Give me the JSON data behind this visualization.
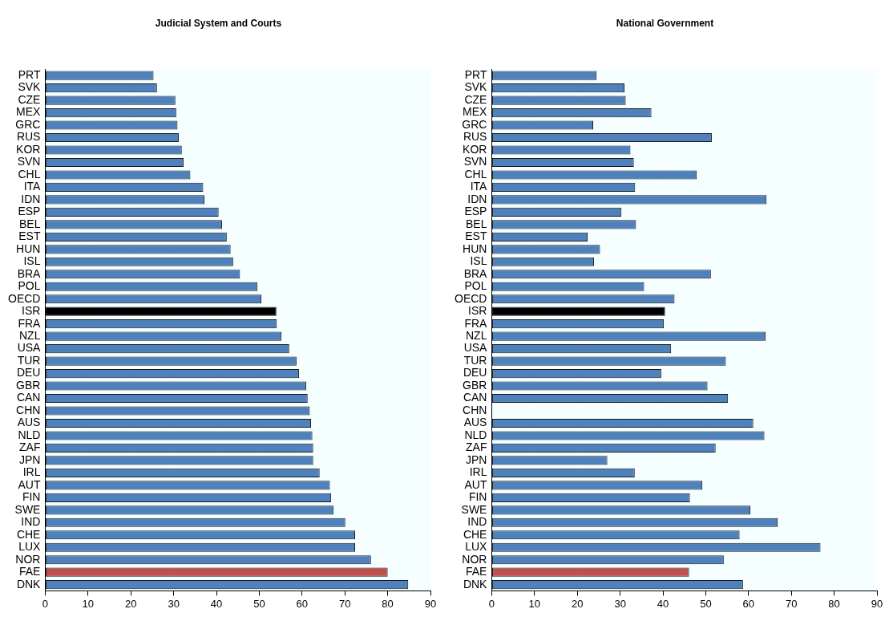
{
  "chart_data": [
    {
      "type": "bar",
      "orientation": "horizontal",
      "title": "Judicial System and Courts",
      "categories": [
        "PRT",
        "SVK",
        "CZE",
        "MEX",
        "GRC",
        "RUS",
        "KOR",
        "SVN",
        "CHL",
        "ITA",
        "IDN",
        "ESP",
        "BEL",
        "EST",
        "HUN",
        "ISL",
        "BRA",
        "POL",
        "OECD",
        "ISR",
        "FRA",
        "NZL",
        "USA",
        "TUR",
        "DEU",
        "GBR",
        "CAN",
        "CHN",
        "AUS",
        "NLD",
        "ZAF",
        "JPN",
        "IRL",
        "AUT",
        "FIN",
        "SWE",
        "IND",
        "CHE",
        "LUX",
        "NOR",
        "FAE",
        "DNK"
      ],
      "values": [
        25.3,
        26.1,
        30.4,
        30.6,
        30.9,
        31.2,
        31.9,
        32.3,
        33.9,
        36.9,
        37.2,
        40.5,
        41.3,
        42.4,
        43.3,
        43.9,
        45.5,
        49.6,
        50.5,
        54.0,
        54.1,
        55.2,
        57.0,
        58.7,
        59.3,
        61.0,
        61.3,
        61.8,
        62.1,
        62.4,
        62.6,
        62.6,
        64.1,
        66.5,
        66.8,
        67.4,
        70.1,
        72.4,
        72.4,
        76.1,
        80.0,
        84.8
      ],
      "colors": [
        "#4f81bd",
        "#4f81bd",
        "#4f81bd",
        "#4f81bd",
        "#4f81bd",
        "#4f81bd",
        "#4f81bd",
        "#4f81bd",
        "#4f81bd",
        "#4f81bd",
        "#4f81bd",
        "#4f81bd",
        "#4f81bd",
        "#4f81bd",
        "#4f81bd",
        "#4f81bd",
        "#4f81bd",
        "#4f81bd",
        "#4f81bd",
        "#000000",
        "#4f81bd",
        "#4f81bd",
        "#4f81bd",
        "#4f81bd",
        "#4f81bd",
        "#4f81bd",
        "#4f81bd",
        "#4f81bd",
        "#4f81bd",
        "#4f81bd",
        "#4f81bd",
        "#4f81bd",
        "#4f81bd",
        "#4f81bd",
        "#4f81bd",
        "#4f81bd",
        "#4f81bd",
        "#4f81bd",
        "#4f81bd",
        "#4f81bd",
        "#c0504d",
        "#4f81bd"
      ],
      "xlim": [
        0,
        90
      ],
      "xticks": [
        0,
        10,
        20,
        30,
        40,
        50,
        60,
        70,
        80,
        90
      ],
      "grid": "x"
    },
    {
      "type": "bar",
      "orientation": "horizontal",
      "title": "National Government",
      "categories": [
        "PRT",
        "SVK",
        "CZE",
        "MEX",
        "GRC",
        "RUS",
        "KOR",
        "SVN",
        "CHL",
        "ITA",
        "IDN",
        "ESP",
        "BEL",
        "EST",
        "HUN",
        "ISL",
        "BRA",
        "POL",
        "OECD",
        "ISR",
        "FRA",
        "NZL",
        "USA",
        "TUR",
        "DEU",
        "GBR",
        "CAN",
        "CHN",
        "AUS",
        "NLD",
        "ZAF",
        "JPN",
        "IRL",
        "AUT",
        "FIN",
        "SWE",
        "IND",
        "CHE",
        "LUX",
        "NOR",
        "FAE",
        "DNK"
      ],
      "values": [
        24.5,
        31.0,
        31.3,
        37.3,
        23.7,
        51.4,
        32.4,
        33.2,
        47.9,
        33.5,
        64.2,
        30.3,
        33.7,
        22.4,
        25.3,
        23.9,
        51.2,
        35.6,
        42.7,
        40.5,
        40.2,
        64.0,
        41.9,
        54.7,
        39.6,
        50.4,
        55.2,
        null,
        61.1,
        63.7,
        52.3,
        27.0,
        33.4,
        49.2,
        46.3,
        60.4,
        66.8,
        57.9,
        76.8,
        54.2,
        46.1,
        58.7
      ],
      "colors": [
        "#4f81bd",
        "#4f81bd",
        "#4f81bd",
        "#4f81bd",
        "#4f81bd",
        "#4f81bd",
        "#4f81bd",
        "#4f81bd",
        "#4f81bd",
        "#4f81bd",
        "#4f81bd",
        "#4f81bd",
        "#4f81bd",
        "#4f81bd",
        "#4f81bd",
        "#4f81bd",
        "#4f81bd",
        "#4f81bd",
        "#4f81bd",
        "#000000",
        "#4f81bd",
        "#4f81bd",
        "#4f81bd",
        "#4f81bd",
        "#4f81bd",
        "#4f81bd",
        "#4f81bd",
        "#4f81bd",
        "#4f81bd",
        "#4f81bd",
        "#4f81bd",
        "#4f81bd",
        "#4f81bd",
        "#4f81bd",
        "#4f81bd",
        "#4f81bd",
        "#4f81bd",
        "#4f81bd",
        "#4f81bd",
        "#4f81bd",
        "#c0504d",
        "#4f81bd"
      ],
      "xlim": [
        0,
        90
      ],
      "xticks": [
        0,
        10,
        20,
        30,
        40,
        50,
        60,
        70,
        80,
        90
      ],
      "grid": "x"
    }
  ]
}
